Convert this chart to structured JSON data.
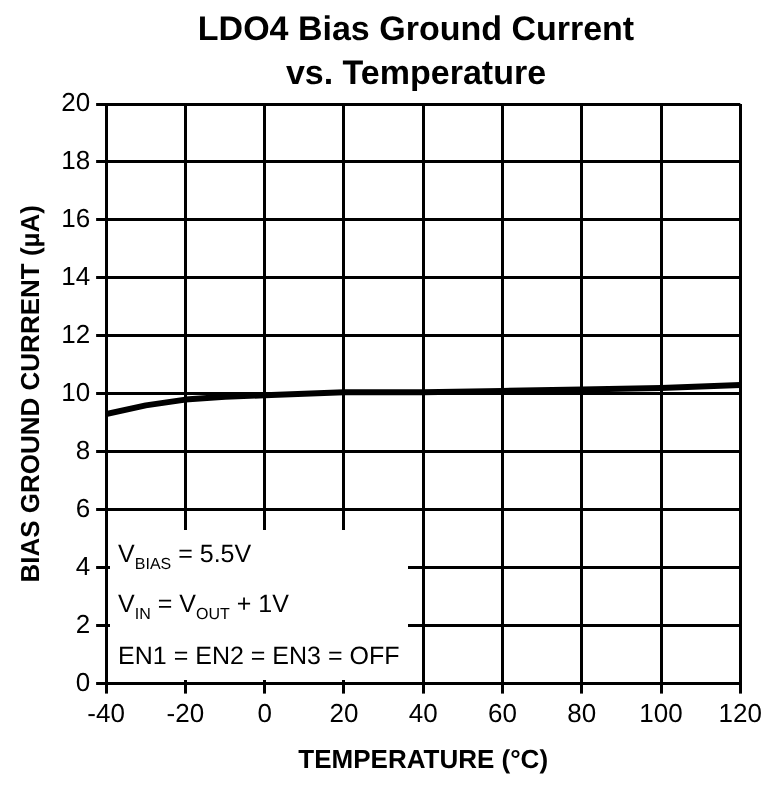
{
  "chart_data": {
    "type": "line",
    "title": "LDO4 Bias Ground Current vs. Temperature",
    "xlabel": "TEMPERATURE (°C)",
    "ylabel": "BIAS GROUND CURRENT (µA)",
    "x": [
      -40,
      -30,
      -20,
      -10,
      0,
      10,
      20,
      40,
      60,
      80,
      100,
      120
    ],
    "series": [
      {
        "color": "#000000",
        "values": [
          9.3,
          9.6,
          9.8,
          9.9,
          9.95,
          10.0,
          10.05,
          10.05,
          10.1,
          10.15,
          10.2,
          10.3
        ]
      }
    ],
    "xlim": [
      -40,
      120
    ],
    "xticks": [
      -40,
      -20,
      0,
      20,
      40,
      60,
      80,
      100,
      120
    ],
    "ylim": [
      0,
      20
    ],
    "yticks": [
      0,
      2,
      4,
      6,
      8,
      10,
      12,
      14,
      16,
      18,
      20
    ],
    "annotations": [
      "V$_{BIAS}$ = 5.5V",
      "V$_{IN}$ = V$_{OUT}$ + 1V",
      "EN1 = EN2 = EN3 = OFF"
    ],
    "grid": true,
    "legend": false,
    "marker": "none",
    "line_style": "solid"
  }
}
